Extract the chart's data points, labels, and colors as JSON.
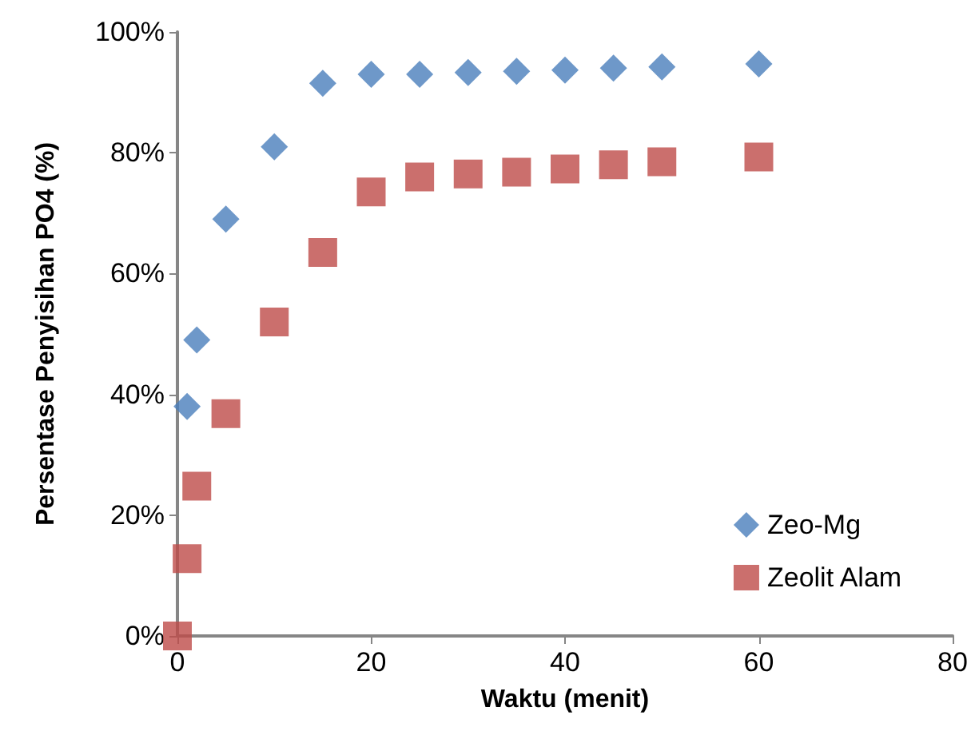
{
  "chart_data": {
    "type": "scatter",
    "xlabel": "Waktu (menit)",
    "ylabel": "Persentase Penyisihan PO4 (%)",
    "xlim": [
      0,
      80
    ],
    "xticks": [
      0,
      20,
      40,
      60,
      80
    ],
    "ylim": [
      0,
      100
    ],
    "yticks": [
      {
        "value": 0,
        "label": "0%"
      },
      {
        "value": 20,
        "label": "20%"
      },
      {
        "value": 40,
        "label": "40%"
      },
      {
        "value": 60,
        "label": "60%"
      },
      {
        "value": 80,
        "label": "80%"
      },
      {
        "value": 100,
        "label": "100%"
      }
    ],
    "grid": false,
    "legend": "bottom right",
    "series": [
      {
        "name": "Zeo-Mg",
        "color": "#4a7ebb",
        "marker": "diamond",
        "x": [
          1,
          2,
          5,
          10,
          15,
          20,
          25,
          30,
          35,
          40,
          45,
          50,
          60
        ],
        "values": [
          38,
          49,
          69,
          81,
          91.5,
          93,
          93,
          93.3,
          93.5,
          93.7,
          94,
          94.2,
          94.7
        ]
      },
      {
        "name": "Zeolit Alam",
        "color": "#be4b48",
        "marker": "square",
        "x": [
          0,
          1,
          2,
          5,
          10,
          15,
          20,
          25,
          30,
          35,
          40,
          45,
          50,
          60
        ],
        "values": [
          0,
          12.8,
          24.8,
          36.8,
          52,
          63.5,
          73.5,
          76,
          76.5,
          76.8,
          77.3,
          78,
          78.5,
          79.3
        ]
      }
    ]
  }
}
